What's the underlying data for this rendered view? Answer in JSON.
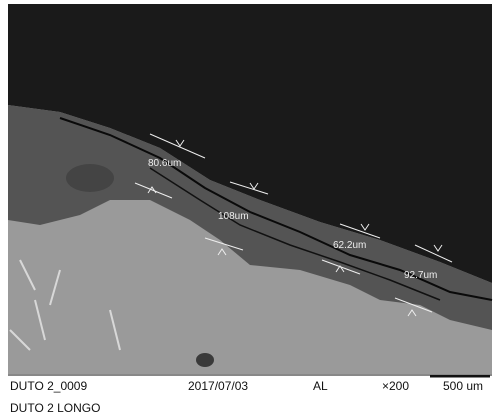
{
  "image": {
    "measurements": [
      {
        "label": "80.6um"
      },
      {
        "label": "108um"
      },
      {
        "label": "62.2um"
      },
      {
        "label": "92.7um"
      }
    ]
  },
  "info_bar": {
    "sample": "DUTO 2_0009",
    "date": "2017/07/03",
    "mode": "AL",
    "magnification": "×200",
    "scale": "500 um"
  },
  "caption": "DUTO 2 LONGO"
}
